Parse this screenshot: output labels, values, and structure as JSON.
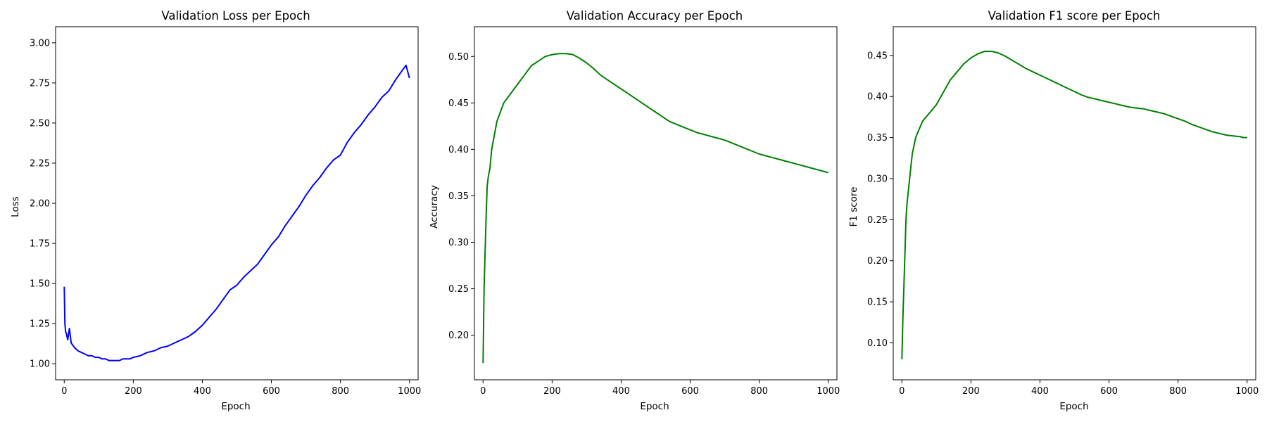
{
  "chart_data": [
    {
      "type": "line",
      "title": "Validation Loss per Epoch",
      "xlabel": "Epoch",
      "ylabel": "Loss",
      "xlim": [
        -25,
        1025
      ],
      "ylim": [
        0.9,
        3.1
      ],
      "xticks": [
        "0",
        "200",
        "400",
        "600",
        "800",
        "1000"
      ],
      "yticks": [
        "1.00",
        "1.25",
        "1.50",
        "1.75",
        "2.00",
        "2.25",
        "2.50",
        "2.75",
        "3.00"
      ],
      "grid": false,
      "color": "#0000ff",
      "series": [
        {
          "x": [
            0,
            2,
            4,
            6,
            8,
            10,
            15,
            20,
            30,
            40,
            50,
            60,
            70,
            80,
            90,
            100,
            110,
            120,
            130,
            140,
            150,
            160,
            170,
            180,
            190,
            200,
            220,
            240,
            260,
            280,
            300,
            320,
            340,
            360,
            380,
            400,
            420,
            440,
            460,
            480,
            500,
            520,
            540,
            560,
            580,
            600,
            620,
            640,
            660,
            680,
            700,
            720,
            740,
            760,
            780,
            800,
            820,
            840,
            860,
            880,
            900,
            920,
            940,
            960,
            980,
            990,
            1000
          ],
          "values": [
            1.48,
            1.25,
            1.2,
            1.19,
            1.17,
            1.15,
            1.22,
            1.13,
            1.1,
            1.08,
            1.07,
            1.06,
            1.05,
            1.05,
            1.04,
            1.04,
            1.03,
            1.03,
            1.02,
            1.02,
            1.02,
            1.02,
            1.03,
            1.03,
            1.03,
            1.04,
            1.05,
            1.07,
            1.08,
            1.1,
            1.11,
            1.13,
            1.15,
            1.17,
            1.2,
            1.24,
            1.29,
            1.34,
            1.4,
            1.46,
            1.49,
            1.54,
            1.58,
            1.62,
            1.68,
            1.74,
            1.79,
            1.86,
            1.92,
            1.98,
            2.05,
            2.11,
            2.16,
            2.22,
            2.27,
            2.3,
            2.38,
            2.44,
            2.49,
            2.55,
            2.6,
            2.66,
            2.7,
            2.77,
            2.83,
            2.86,
            2.78
          ]
        }
      ]
    },
    {
      "type": "line",
      "title": "Validation Accuracy per Epoch",
      "xlabel": "Epoch",
      "ylabel": "Accuracy",
      "xlim": [
        -25,
        1025
      ],
      "ylim": [
        0.152,
        0.532
      ],
      "xticks": [
        "0",
        "200",
        "400",
        "600",
        "800",
        "1000"
      ],
      "yticks": [
        "0.20",
        "0.25",
        "0.30",
        "0.35",
        "0.40",
        "0.45",
        "0.50"
      ],
      "grid": false,
      "color": "#008000",
      "series": [
        {
          "x": [
            0,
            3,
            6,
            9,
            12,
            15,
            20,
            25,
            30,
            40,
            50,
            60,
            80,
            100,
            120,
            140,
            160,
            180,
            200,
            220,
            240,
            260,
            280,
            300,
            320,
            340,
            360,
            380,
            400,
            420,
            440,
            460,
            480,
            500,
            520,
            540,
            560,
            580,
            600,
            620,
            640,
            660,
            680,
            700,
            720,
            740,
            760,
            780,
            800,
            820,
            840,
            860,
            880,
            900,
            920,
            940,
            960,
            980,
            990,
            1000
          ],
          "values": [
            0.17,
            0.25,
            0.29,
            0.33,
            0.36,
            0.37,
            0.38,
            0.4,
            0.41,
            0.43,
            0.44,
            0.45,
            0.46,
            0.47,
            0.48,
            0.49,
            0.495,
            0.5,
            0.502,
            0.503,
            0.503,
            0.502,
            0.498,
            0.493,
            0.487,
            0.48,
            0.475,
            0.47,
            0.465,
            0.46,
            0.455,
            0.45,
            0.445,
            0.44,
            0.435,
            0.43,
            0.427,
            0.424,
            0.421,
            0.418,
            0.416,
            0.414,
            0.412,
            0.41,
            0.407,
            0.404,
            0.401,
            0.398,
            0.395,
            0.393,
            0.391,
            0.389,
            0.387,
            0.385,
            0.383,
            0.381,
            0.379,
            0.377,
            0.376,
            0.375
          ]
        }
      ]
    },
    {
      "type": "line",
      "title": "Validation F1 score per Epoch",
      "xlabel": "Epoch",
      "ylabel": "F1 score",
      "xlim": [
        -25,
        1025
      ],
      "ylim": [
        0.055,
        0.485
      ],
      "xticks": [
        "0",
        "200",
        "400",
        "600",
        "800",
        "1000"
      ],
      "yticks": [
        "0.10",
        "0.15",
        "0.20",
        "0.25",
        "0.30",
        "0.35",
        "0.40",
        "0.45"
      ],
      "grid": false,
      "color": "#008000",
      "series": [
        {
          "x": [
            0,
            3,
            6,
            9,
            12,
            15,
            20,
            25,
            30,
            40,
            50,
            60,
            80,
            100,
            120,
            140,
            160,
            180,
            200,
            220,
            240,
            260,
            280,
            300,
            320,
            340,
            360,
            380,
            400,
            420,
            440,
            460,
            480,
            500,
            520,
            540,
            560,
            580,
            600,
            620,
            640,
            660,
            680,
            700,
            720,
            740,
            760,
            780,
            800,
            820,
            840,
            860,
            880,
            900,
            920,
            940,
            960,
            980,
            990,
            1000
          ],
          "values": [
            0.08,
            0.13,
            0.17,
            0.21,
            0.25,
            0.27,
            0.29,
            0.31,
            0.33,
            0.35,
            0.36,
            0.37,
            0.38,
            0.39,
            0.405,
            0.42,
            0.43,
            0.44,
            0.447,
            0.452,
            0.455,
            0.455,
            0.453,
            0.449,
            0.444,
            0.439,
            0.434,
            0.43,
            0.426,
            0.422,
            0.418,
            0.414,
            0.41,
            0.406,
            0.402,
            0.399,
            0.397,
            0.395,
            0.393,
            0.391,
            0.389,
            0.387,
            0.386,
            0.385,
            0.383,
            0.381,
            0.379,
            0.376,
            0.373,
            0.37,
            0.366,
            0.363,
            0.36,
            0.357,
            0.355,
            0.353,
            0.352,
            0.351,
            0.35,
            0.35
          ]
        }
      ]
    }
  ]
}
